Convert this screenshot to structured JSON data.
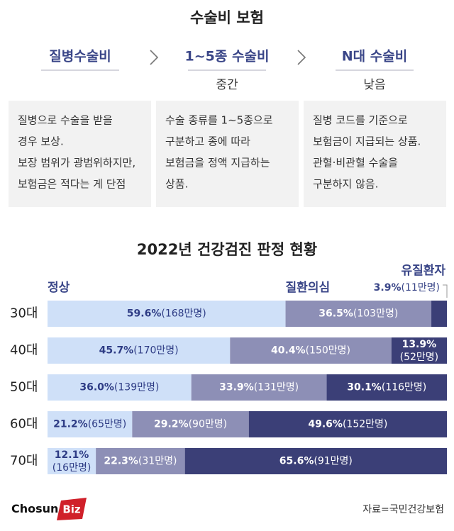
{
  "header": {
    "title": "수술비 보험",
    "columns": [
      {
        "name": "질병수술비",
        "lines": [
          "질병으로 수술을 받을",
          "경우 보상.",
          "보장 범위가 광범위하지만,",
          "보험금은 적다는 게 단점"
        ]
      },
      {
        "name": "1~5종 수술비",
        "level": "중간",
        "lines": [
          "수술 종류를 1~5종으로",
          "구분하고 종에 따라",
          "보험금을 정액 지급하는",
          "상품."
        ]
      },
      {
        "name": "N대 수술비",
        "level": "낮음",
        "lines": [
          "질병 코드를 기준으로",
          "보험금이 지급되는 상품.",
          "관혈·비관혈 수술을",
          "구분하지 않음."
        ]
      }
    ]
  },
  "chart_data": {
    "type": "stacked-bar-horizontal",
    "title": "2022년 건강검진 판정 현황",
    "categories": [
      "30대",
      "40대",
      "50대",
      "60대",
      "70대"
    ],
    "series": [
      {
        "name": "정상",
        "color": "#cfe0f8",
        "label_color": "#2e3c85",
        "values": [
          59.6,
          45.7,
          36.0,
          21.2,
          12.1
        ],
        "value_labels": [
          "59.6%",
          "45.7%",
          "36.0%",
          "21.2%",
          "12.1%"
        ],
        "counts": [
          168,
          170,
          139,
          65,
          16
        ],
        "count_labels": [
          "(168만명)",
          "(170만명)",
          "(139만명)",
          "(65만명)",
          "(16만명)"
        ]
      },
      {
        "name": "질환의심",
        "color": "#8d8fb6",
        "label_color": "#ffffff",
        "values": [
          36.5,
          40.4,
          33.9,
          29.2,
          22.3
        ],
        "value_labels": [
          "36.5%",
          "40.4%",
          "33.9%",
          "29.2%",
          "22.3%"
        ],
        "counts": [
          103,
          150,
          131,
          90,
          31
        ],
        "count_labels": [
          "(103만명)",
          "(150만명)",
          "(131만명)",
          "(90만명)",
          "(31만명)"
        ]
      },
      {
        "name": "유질환자",
        "color": "#3b3f77",
        "label_color": "#ffffff",
        "values": [
          3.9,
          13.9,
          30.1,
          49.6,
          65.6
        ],
        "value_labels": [
          "3.9%",
          "13.9%",
          "30.1%",
          "49.6%",
          "65.6%"
        ],
        "counts": [
          11,
          52,
          116,
          152,
          91
        ],
        "count_labels": [
          "(11만명)",
          "(52만명)",
          "(116만명)",
          "(152만명)",
          "(91만명)"
        ]
      }
    ]
  },
  "footer": {
    "logo": [
      "Chosun",
      "Biz"
    ],
    "source": "자료=국민건강보험"
  }
}
